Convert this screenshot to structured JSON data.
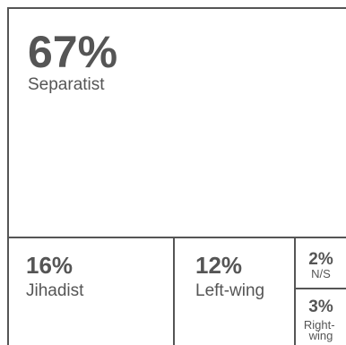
{
  "chart_data": {
    "type": "treemap",
    "items": [
      {
        "percent_label": "67%",
        "value": 67,
        "category": "Separatist"
      },
      {
        "percent_label": "16%",
        "value": 16,
        "category": "Jihadist"
      },
      {
        "percent_label": "12%",
        "value": 12,
        "category": "Left-wing"
      },
      {
        "percent_label": "2%",
        "value": 2,
        "category": "N/S"
      },
      {
        "percent_label": "3%",
        "value": 3,
        "category": "Right-wing"
      }
    ]
  },
  "colors": {
    "border": "#555555",
    "text": "#555555",
    "background": "#ffffff"
  }
}
